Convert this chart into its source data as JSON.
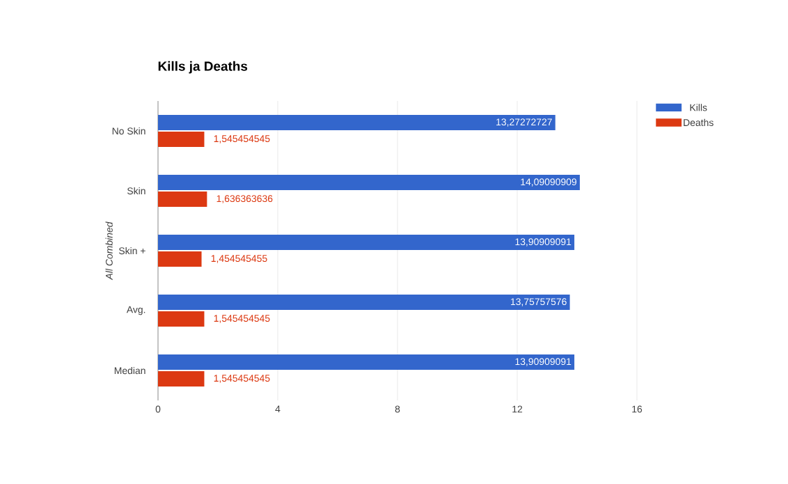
{
  "chart_data": {
    "type": "bar",
    "orientation": "horizontal",
    "title": "Kills ja Deaths",
    "ylabel": "All Combined",
    "categories": [
      "No Skin",
      "Skin",
      "Skin +",
      "Avg.",
      "Median"
    ],
    "series": [
      {
        "name": "Kills",
        "color": "#3366cc",
        "values": [
          13.27272727,
          14.09090909,
          13.90909091,
          13.75757576,
          13.90909091
        ],
        "value_labels": [
          "13,27272727",
          "14,09090909",
          "13,90909091",
          "13,75757576",
          "13,90909091"
        ]
      },
      {
        "name": "Deaths",
        "color": "#dc3912",
        "values": [
          1.545454545,
          1.636363636,
          1.454545455,
          1.545454545,
          1.545454545
        ],
        "value_labels": [
          "1,545454545",
          "1,636363636",
          "1,454545455",
          "1,545454545",
          "1,545454545"
        ]
      }
    ],
    "xlim": [
      0,
      16
    ],
    "xticks": [
      0,
      4,
      8,
      12,
      16
    ],
    "grid": "x",
    "legend": "top right"
  }
}
